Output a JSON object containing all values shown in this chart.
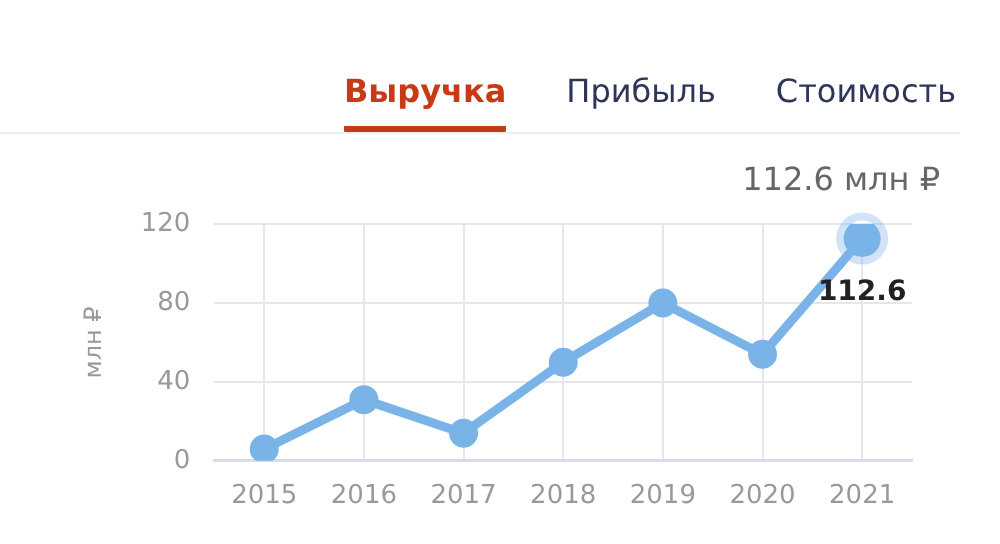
{
  "chart_data": {
    "type": "line",
    "title": "Выручка",
    "subtitle": "112.6 млн ₽",
    "annotations": [
      "Прибыль",
      "Стоимость"
    ],
    "ylabel": "млн ₽",
    "categories": [
      "2015",
      "2016",
      "2017",
      "2018",
      "2019",
      "2020",
      "2021"
    ],
    "series": [
      {
        "color": "#7ab3e8",
        "values": [
          6,
          31,
          14,
          50,
          80,
          54,
          112.6
        ],
        "value_labels": [
          null,
          null,
          null,
          null,
          null,
          null,
          "112.6"
        ]
      }
    ],
    "ylim": [
      0,
      120
    ],
    "yticks": [
      0,
      40,
      80,
      120
    ],
    "grid": true,
    "legend": false,
    "marker": "circle",
    "line_style": "solid"
  }
}
